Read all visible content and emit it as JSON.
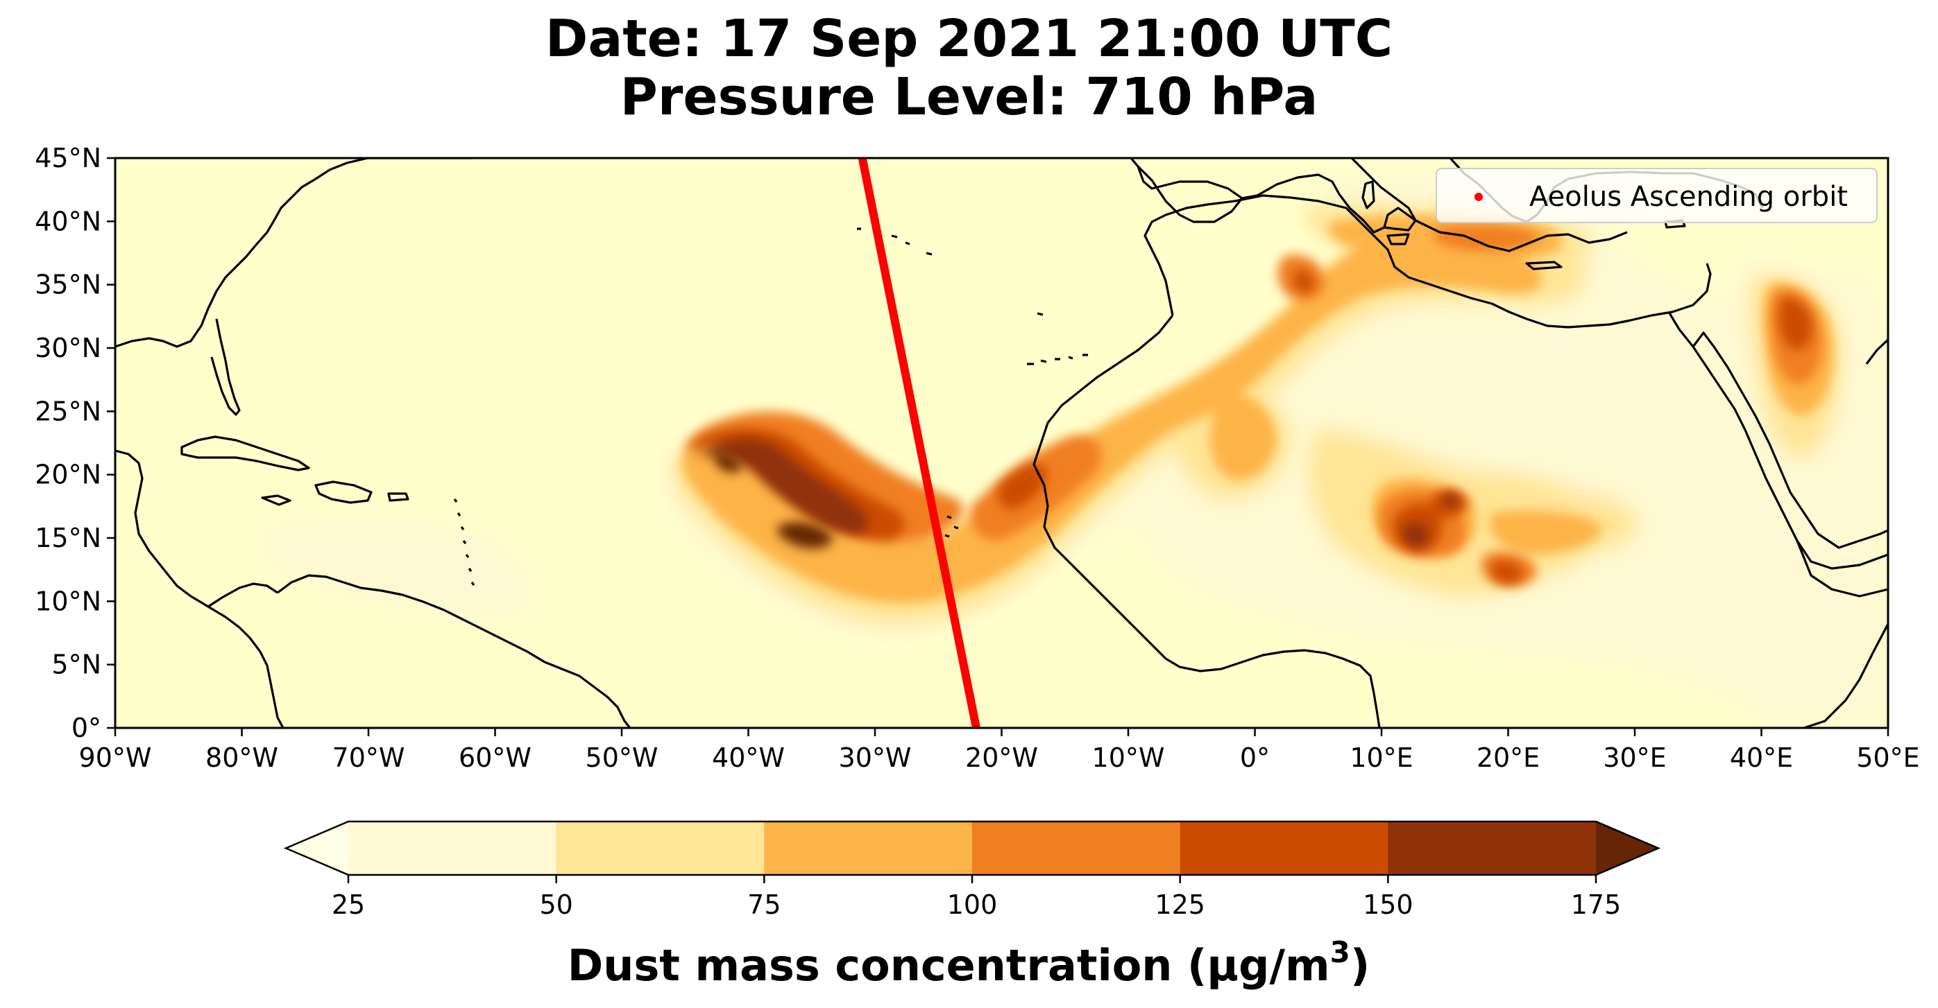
{
  "title": {
    "line1": "Date: 17 Sep 2021 21:00 UTC",
    "line2": "Pressure Level: 710 hPa"
  },
  "map": {
    "lon_range": [
      -90,
      50
    ],
    "lat_range": [
      0,
      45
    ],
    "lon_ticks": [
      {
        "value": -90,
        "label": "90°W"
      },
      {
        "value": -80,
        "label": "80°W"
      },
      {
        "value": -70,
        "label": "70°W"
      },
      {
        "value": -60,
        "label": "60°W"
      },
      {
        "value": -50,
        "label": "50°W"
      },
      {
        "value": -40,
        "label": "40°W"
      },
      {
        "value": -30,
        "label": "30°W"
      },
      {
        "value": -20,
        "label": "20°W"
      },
      {
        "value": -10,
        "label": "10°W"
      },
      {
        "value": 0,
        "label": "0°"
      },
      {
        "value": 10,
        "label": "10°E"
      },
      {
        "value": 20,
        "label": "20°E"
      },
      {
        "value": 30,
        "label": "30°E"
      },
      {
        "value": 40,
        "label": "40°E"
      },
      {
        "value": 50,
        "label": "50°E"
      }
    ],
    "lat_ticks": [
      {
        "value": 0,
        "label": "0°"
      },
      {
        "value": 5,
        "label": "5°N"
      },
      {
        "value": 10,
        "label": "10°N"
      },
      {
        "value": 15,
        "label": "15°N"
      },
      {
        "value": 20,
        "label": "20°N"
      },
      {
        "value": 25,
        "label": "25°N"
      },
      {
        "value": 30,
        "label": "30°N"
      },
      {
        "value": 35,
        "label": "35°N"
      },
      {
        "value": 40,
        "label": "40°N"
      },
      {
        "value": 45,
        "label": "45°N"
      }
    ],
    "background_color": "#ffffcc",
    "coast_color": "#000000",
    "orbit": {
      "name": "Aeolus Ascending orbit",
      "color": "#ff0000",
      "start": {
        "lon": -31,
        "lat": 45
      },
      "end": {
        "lon": -22,
        "lat": 0
      }
    },
    "legend": {
      "label": "Aeolus Ascending orbit",
      "placement": "top-right"
    }
  },
  "colorbar": {
    "levels": [
      25,
      50,
      75,
      100,
      125,
      150,
      175
    ],
    "colors": [
      "#fff8d2",
      "#ffe596",
      "#fdb447",
      "#f07f22",
      "#cc4c02",
      "#8f320a",
      "#662506"
    ],
    "under_color": "#ffffe5",
    "over_color": "#662506",
    "tick_labels": [
      "25",
      "50",
      "75",
      "100",
      "125",
      "150",
      "175"
    ],
    "label": "Dust mass concentration (μg/m",
    "label_sup": "3",
    "label_end": ")"
  },
  "chart_data": {
    "type": "heatmap",
    "title": "Date: 17 Sep 2021 21:00 UTC / Pressure Level: 710 hPa",
    "xlabel": "",
    "ylabel": "",
    "xlim": [
      -90,
      50
    ],
    "ylim": [
      0,
      45
    ],
    "colorbar_label": "Dust mass concentration (μg/m3)",
    "levels": [
      25,
      50,
      75,
      100,
      125,
      150,
      175
    ],
    "plumes": [
      {
        "lon": -35,
        "lat": 15.5,
        "value": 175
      },
      {
        "lon": -40,
        "lat": 19.5,
        "value": 175
      },
      {
        "lon": -19,
        "lat": 20,
        "value": 150
      },
      {
        "lon": 13,
        "lat": 15,
        "value": 175
      },
      {
        "lon": 20,
        "lat": 12,
        "value": 150
      },
      {
        "lon": 5,
        "lat": 35.5,
        "value": 150
      },
      {
        "lon": 41,
        "lat": 32,
        "value": 125
      }
    ]
  }
}
